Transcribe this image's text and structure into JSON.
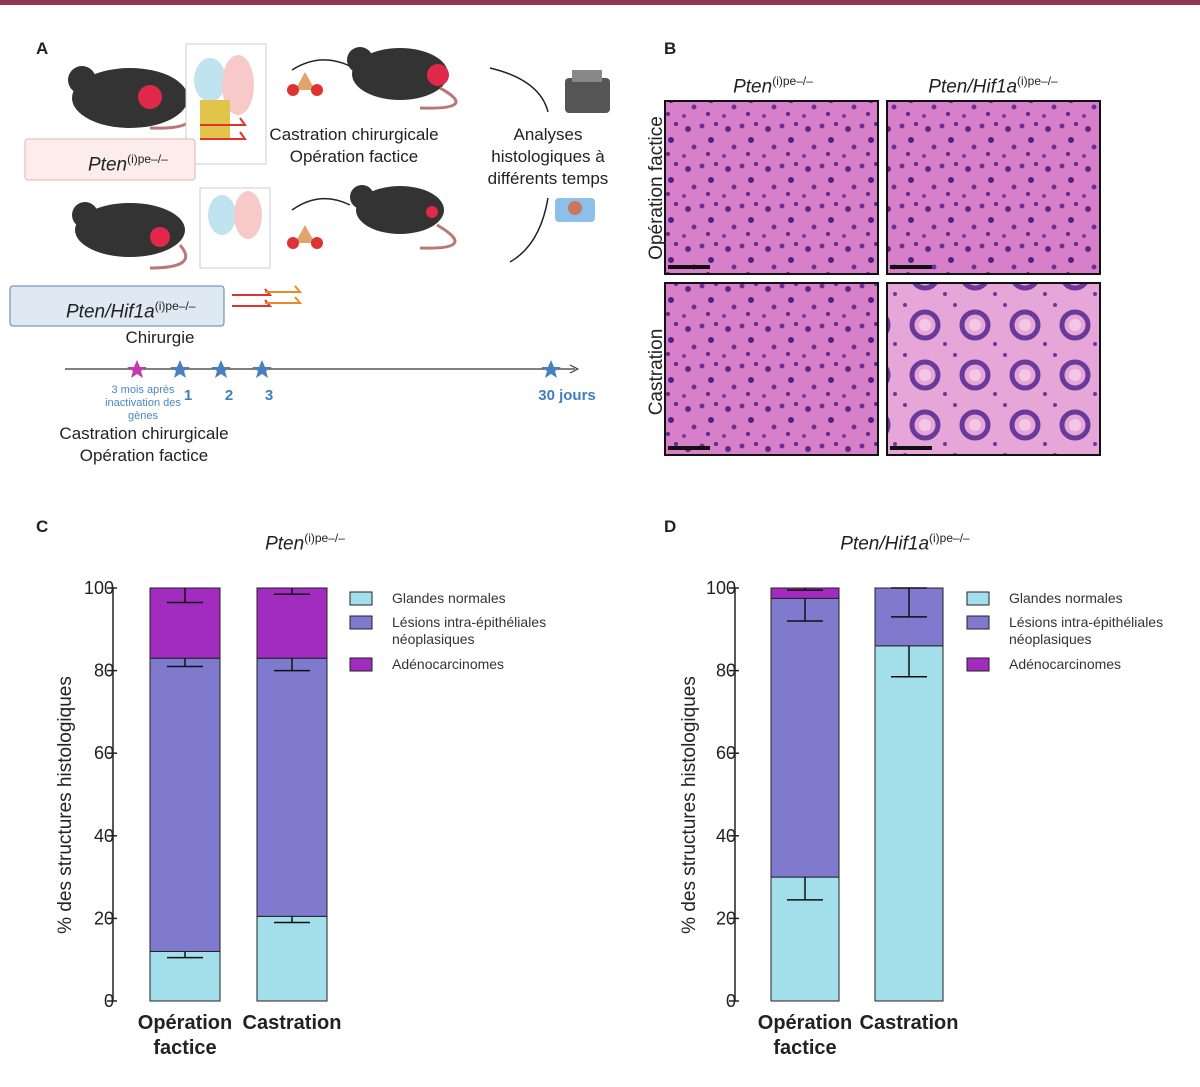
{
  "panel_a": {
    "label": "A",
    "genotype_1": {
      "name": "Pten",
      "sup": "(i)pe–/–"
    },
    "procedure": [
      "Castration chirurgicale",
      "Opération factice"
    ],
    "analysis": "Analyses histologiques à différents temps",
    "genotype_2": {
      "name": "Pten/Hif1a",
      "sup": "(i)pe–/–"
    },
    "surgery": "Chirurgie",
    "timeline": {
      "start": "3 mois après inactivation des gènes",
      "points": [
        "1",
        "2",
        "3",
        "30 jours"
      ]
    },
    "timeline_procedure": [
      "Castration chirurgicale",
      "Opération factice"
    ]
  },
  "panel_b": {
    "label": "B",
    "columns": [
      {
        "name": "Pten",
        "sup": "(i)pe–/–"
      },
      {
        "name": "Pten/Hif1a",
        "sup": "(i)pe–/–"
      }
    ],
    "rows": [
      "Opération factice",
      "Castration"
    ]
  },
  "chart_data": [
    {
      "type": "stacked_bar",
      "label": "C",
      "title": "Pten",
      "title_sup": "(i)pe–/–",
      "ylabel": "% des structures histologiques",
      "categories": [
        "Opération factice",
        "Castration"
      ],
      "series": [
        {
          "name": "Glandes normales",
          "color": "#a2dfea",
          "values": [
            12,
            20.5
          ],
          "errors": [
            1.5,
            1.5
          ]
        },
        {
          "name": "Lésions intra-épithéliales néoplasiques",
          "color": "#7f7acd",
          "values": [
            71,
            62.5
          ],
          "errors": [
            2,
            3
          ]
        },
        {
          "name": "Adénocarcinomes",
          "color": "#a22cc0",
          "values": [
            17,
            17
          ],
          "errors": [
            3.5,
            1.5
          ]
        }
      ],
      "ylim": [
        0,
        100
      ],
      "yticks": [
        0,
        20,
        40,
        60,
        80,
        100
      ],
      "grid": false
    },
    {
      "type": "stacked_bar",
      "label": "D",
      "title": "Pten/Hif1a",
      "title_sup": "(i)pe–/–",
      "ylabel": "% des structures histologiques",
      "categories": [
        "Opération factice",
        "Castration"
      ],
      "series": [
        {
          "name": "Glandes normales",
          "color": "#a2dfea",
          "values": [
            30,
            86
          ],
          "errors": [
            5.5,
            7.5
          ]
        },
        {
          "name": "Lésions intra-épithéliales néoplasiques",
          "color": "#7f7acd",
          "values": [
            67.5,
            14
          ],
          "errors": [
            5.5,
            7
          ]
        },
        {
          "name": "Adénocarcinomes",
          "color": "#a22cc0",
          "values": [
            2.5,
            0
          ],
          "errors": [
            0.5,
            0
          ]
        }
      ],
      "ylim": [
        0,
        100
      ],
      "yticks": [
        0,
        20,
        40,
        60,
        80,
        100
      ],
      "grid": false
    }
  ]
}
